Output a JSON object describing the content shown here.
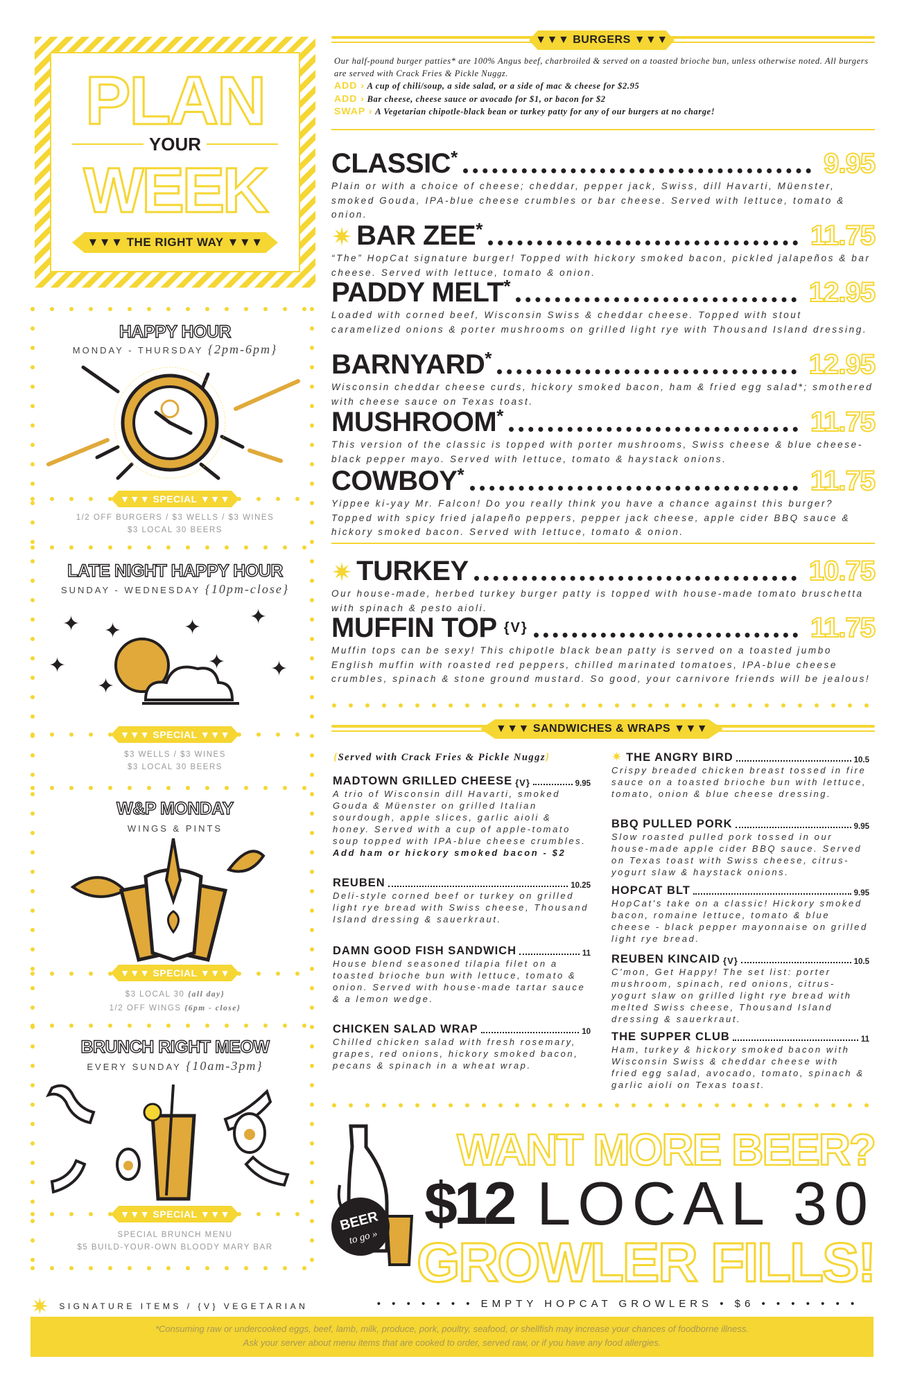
{
  "colors": {
    "accent": "#f5d633",
    "gold": "#e0a93a",
    "ink": "#231f20"
  },
  "plan": {
    "line1": "PLAN",
    "line2": "YOUR",
    "line3": "WEEK",
    "badge": "▼▼▼ THE RIGHT WAY ▼▼▼"
  },
  "panels": [
    {
      "title": "HAPPY HOUR",
      "sub": "MONDAY - THURSDAY",
      "sub_italic": "{2pm-6pm}",
      "badge": "▼▼▼ SPECIAL ▼▼▼",
      "lines": [
        "1/2 OFF BURGERS / $3 WELLS / $3 WINES",
        "$3 LOCAL 30 BEERS"
      ],
      "icon": "clock-icon"
    },
    {
      "title": "LATE NIGHT HAPPY HOUR",
      "sub": "SUNDAY - WEDNESDAY",
      "sub_italic": "{10pm-close}",
      "badge": "▼▼▼ SPECIAL ▼▼▼",
      "lines": [
        "$3 WELLS / $3 WINES",
        "$3 LOCAL 30 BEERS"
      ],
      "icon": "moon-stars-icon"
    },
    {
      "title": "W&P MONDAY",
      "sub": "WINGS & PINTS",
      "badge": "▼▼▼ SPECIAL ▼▼▼",
      "lines": [
        "$3 LOCAL 30",
        "1/2 OFF WINGS"
      ],
      "lines_italic": [
        "{all day}",
        "{6pm - close}"
      ],
      "icon": "chicken-beer-icon"
    },
    {
      "title": "BRUNCH RIGHT MEOW",
      "sub": "EVERY SUNDAY",
      "sub_italic": "{10am-3pm}",
      "badge": "▼▼▼ SPECIAL ▼▼▼",
      "lines": [
        "SPECIAL BRUNCH MENU",
        "$5 BUILD-YOUR-OWN BLOODY MARY BAR"
      ],
      "icon": "bloody-mary-icon"
    }
  ],
  "burgers": {
    "header": "▼▼▼ BURGERS ▼▼▼",
    "intro": "Our half-pound burger patties* are 100% Angus beef, charbroiled & served on a toasted brioche bun, unless otherwise noted. All burgers are served with Crack Fries & Pickle Nuggz.",
    "options": [
      {
        "key": "ADD ›",
        "text": "A cup of chili/soup, a side salad, or a side of mac & cheese for $2.95"
      },
      {
        "key": "ADD ›",
        "text": "Bar cheese, cheese sauce or avocado for $1, or bacon for $2"
      },
      {
        "key": "SWAP ›",
        "text": "A Vegetarian chipotle-black bean or turkey patty for any of our burgers at no charge!"
      }
    ],
    "items": [
      {
        "name": "CLASSIC",
        "mark": "*",
        "price": "9.95",
        "desc": "Plain or with a choice of cheese; cheddar, pepper jack, Swiss, dill Havarti, Müenster, smoked Gouda, IPA-blue cheese crumbles or bar cheese. Served with lettuce, tomato & onion."
      },
      {
        "name": "BAR ZEE",
        "mark": "*",
        "signature": true,
        "price": "11.75",
        "desc": "“The” HopCat signature burger! Topped with hickory smoked bacon, pickled jalapeños & bar cheese.  Served with lettuce, tomato & onion."
      },
      {
        "name": "PADDY MELT",
        "mark": " *",
        "price": "12.95",
        "desc": "Loaded with corned beef, Wisconsin Swiss & cheddar cheese. Topped with stout caramelized onions & porter mushrooms on grilled light rye with Thousand Island dressing."
      },
      {
        "name": "BARNYARD",
        "mark": "*",
        "price": "12.95",
        "desc": "Wisconsin cheddar cheese curds, hickory smoked bacon, ham & fried egg salad*; smothered with cheese sauce on Texas toast."
      },
      {
        "name": "MUSHROOM",
        "mark": "*",
        "price": "11.75",
        "desc": "This version of the classic is topped with porter mushrooms, Swiss cheese & blue cheese-black pepper mayo. Served with lettuce, tomato & haystack onions."
      },
      {
        "name": "COWBOY",
        "mark": "*",
        "price": "11.75",
        "desc": "Yippee ki-yay Mr. Falcon! Do you really think you have a chance against this burger? Topped with spicy fried jalapeño peppers, pepper jack cheese, apple cider BBQ sauce & hickory smoked bacon. Served with lettuce, tomato & onion."
      },
      {
        "name": "TURKEY",
        "signature": true,
        "price": "10.75",
        "desc": "Our house-made, herbed turkey burger patty is topped with house-made tomato bruschetta with spinach & pesto aioli."
      },
      {
        "name": "MUFFIN TOP",
        "veg": "{V}",
        "price": "11.75",
        "desc": "Muffin tops can be sexy! This chipotle black bean patty is served on a toasted jumbo English muffin with roasted red peppers, chilled marinated tomatoes, IPA-blue cheese crumbles, spinach & stone ground mustard.  So good, your carnivore friends will be jealous!"
      }
    ]
  },
  "sandwiches": {
    "header": "▼▼▼ SANDWICHES & WRAPS ▼▼▼",
    "note": "Served with Crack Fries & Pickle Nuggz",
    "left": [
      {
        "name": "MADTOWN GRILLED CHEESE",
        "veg": "{V}",
        "price": "9.95",
        "desc": "A trio of Wisconsin dill Havarti, smoked Gouda & Müenster on grilled Italian sourdough, apple slices, garlic aioli & honey. Served with a cup of apple-tomato soup topped with IPA-blue cheese crumbles.",
        "add": "Add ham or hickory smoked bacon - $2"
      },
      {
        "name": "REUBEN",
        "price": "10.25",
        "desc": "Deli-style corned beef or turkey on grilled light rye bread with Swiss cheese, Thousand Island dressing & sauerkraut."
      },
      {
        "name": "DAMN GOOD FISH SANDWICH",
        "price": "11",
        "desc": "House blend seasoned tilapia filet on a toasted brioche bun with lettuce, tomato & onion. Served with house-made tartar sauce & a lemon wedge."
      },
      {
        "name": "CHICKEN SALAD WRAP",
        "price": "10",
        "desc": "Chilled chicken salad with fresh rosemary, grapes, red onions, hickory smoked bacon, pecans & spinach in a wheat wrap."
      }
    ],
    "right": [
      {
        "name": "THE ANGRY BIRD",
        "signature": true,
        "price": "10.5",
        "desc": "Crispy breaded chicken breast tossed in fire sauce on a toasted brioche bun with lettuce, tomato, onion & blue cheese dressing."
      },
      {
        "name": "BBQ PULLED PORK",
        "price": "9.95",
        "desc": "Slow roasted pulled pork tossed in our house-made apple cider BBQ sauce. Served on Texas toast with Swiss cheese, citrus-yogurt slaw & haystack onions."
      },
      {
        "name": "HOPCAT BLT",
        "price": "9.95",
        "desc": "HopCat's take on a classic!  Hickory smoked bacon, romaine lettuce, tomato & blue cheese - black pepper mayonnaise on grilled light rye bread."
      },
      {
        "name": "REUBEN KINCAID",
        "veg": "{V}",
        "price": "10.5",
        "desc": "C'mon, Get Happy! The set list: porter mushroom, spinach, red onions, citrus-yogurt slaw on grilled light rye bread with melted Swiss cheese, Thousand Island dressing & sauerkraut."
      },
      {
        "name": "THE SUPPER CLUB",
        "price": "11",
        "desc": "Ham, turkey & hickory smoked bacon with Wisconsin Swiss & cheddar cheese with fried egg salad, avocado, tomato, spinach & garlic aioli on Texas toast."
      }
    ]
  },
  "promo": {
    "line1": "WANT MORE BEER?",
    "price": "$12",
    "line2": "LOCAL 30",
    "line3": "GROWLER FILLS!",
    "stamp1": "BEER",
    "stamp2": "to go »"
  },
  "footer": {
    "legend": "SIGNATURE ITEMS / {V} VEGETARIAN",
    "growlers": "• • • • • • •  EMPTY HOPCAT GROWLERS • $6  • • • • • • •",
    "disclaimer1": "*Consuming raw or undercooked eggs, beef, lamb, milk, produce, pork, poultry, seafood, or shellfish may increase your chances of foodborne illness.",
    "disclaimer2": "Ask your server about menu items that are cooked to order, served raw, or if you have any food allergies."
  }
}
